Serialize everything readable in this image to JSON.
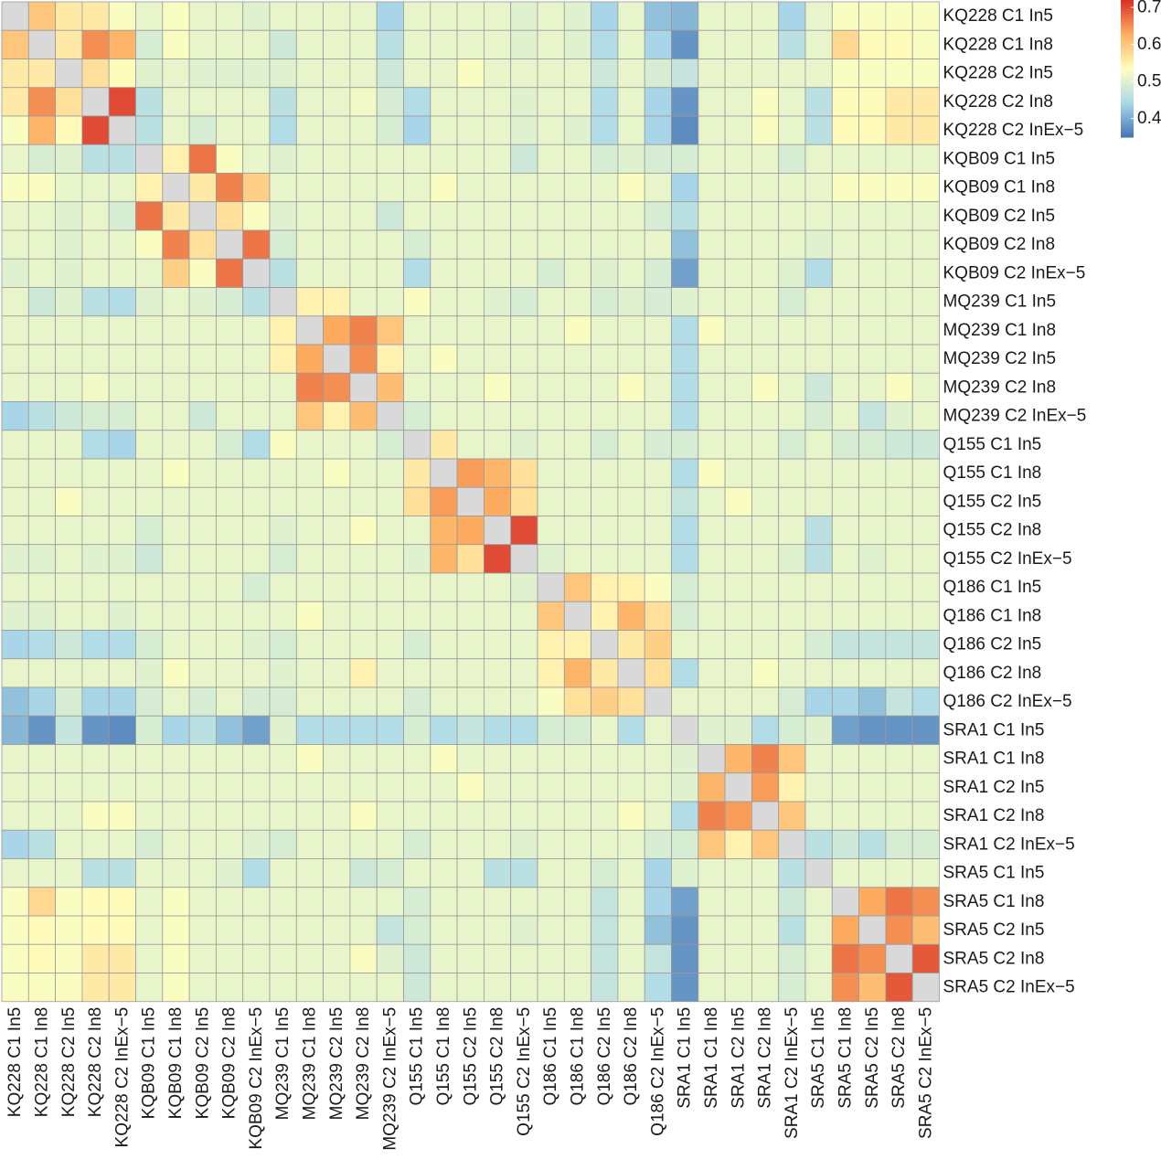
{
  "chart_data": {
    "type": "heatmap",
    "title": "",
    "xlabel": "",
    "ylabel": "",
    "labels": [
      "KQ228 C1 In5",
      "KQ228 C1 In8",
      "KQ228 C2 In5",
      "KQ228 C2 In8",
      "KQ228 C2 InEx−5",
      "KQB09 C1 In5",
      "KQB09 C1 In8",
      "KQB09 C2 In5",
      "KQB09 C2 In8",
      "KQB09 C2 InEx−5",
      "MQ239 C1 In5",
      "MQ239 C1 In8",
      "MQ239 C2 In5",
      "MQ239 C2 In8",
      "MQ239 C2 InEx−5",
      "Q155 C1 In5",
      "Q155 C1 In8",
      "Q155 C2 In5",
      "Q155 C2 In8",
      "Q155 C2 InEx−5",
      "Q186 C1 In5",
      "Q186 C1 In8",
      "Q186 C2 In5",
      "Q186 C2 In8",
      "Q186 C2 InEx−5",
      "SRA1 C1 In5",
      "SRA1 C1 In8",
      "SRA1 C2 In5",
      "SRA1 C2 In8",
      "SRA1 C2 InEx−5",
      "SRA5 C1 In5",
      "SRA5 C1 In8",
      "SRA5 C2 In5",
      "SRA5 C2 In8",
      "SRA5 C2 InEx−5"
    ],
    "diagonal": "not shown (grey)",
    "color_scale": {
      "range": [
        0.35,
        0.72
      ],
      "ticks": [
        0.4,
        0.5,
        0.6,
        0.7
      ],
      "tick_labels": [
        "0.4",
        "0.5",
        "0.6",
        "0.7"
      ],
      "colors": [
        "#4575b4",
        "#abd9e9",
        "#ffffbf",
        "#fdae61",
        "#d73027"
      ],
      "diagonal_color": "#d9d9d9",
      "grid_color": "#9a9a9a"
    },
    "values": [
      [
        null,
        0.6,
        0.56,
        0.56,
        0.53,
        0.51,
        0.53,
        0.51,
        0.51,
        0.5,
        0.51,
        0.51,
        0.51,
        0.51,
        0.44,
        0.51,
        0.51,
        0.51,
        0.51,
        0.5,
        0.51,
        0.5,
        0.44,
        0.51,
        0.42,
        0.41,
        0.51,
        0.51,
        0.51,
        0.44,
        0.51,
        0.53,
        0.53,
        0.53,
        0.53
      ],
      [
        0.6,
        null,
        0.56,
        0.65,
        0.62,
        0.49,
        0.53,
        0.51,
        0.51,
        0.51,
        0.48,
        0.51,
        0.51,
        0.51,
        0.46,
        0.51,
        0.51,
        0.51,
        0.51,
        0.5,
        0.51,
        0.5,
        0.45,
        0.51,
        0.44,
        0.38,
        0.51,
        0.51,
        0.51,
        0.46,
        0.51,
        0.58,
        0.54,
        0.54,
        0.53
      ],
      [
        0.56,
        0.56,
        null,
        0.57,
        0.54,
        0.5,
        0.51,
        0.5,
        0.5,
        0.5,
        0.5,
        0.51,
        0.51,
        0.51,
        0.48,
        0.51,
        0.51,
        0.53,
        0.51,
        0.51,
        0.51,
        0.51,
        0.48,
        0.51,
        0.49,
        0.47,
        0.51,
        0.51,
        0.51,
        0.51,
        0.51,
        0.53,
        0.53,
        0.53,
        0.53
      ],
      [
        0.56,
        0.65,
        0.57,
        null,
        0.7,
        0.46,
        0.51,
        0.51,
        0.51,
        0.51,
        0.46,
        0.51,
        0.51,
        0.52,
        0.49,
        0.45,
        0.51,
        0.51,
        0.51,
        0.5,
        0.51,
        0.51,
        0.45,
        0.51,
        0.44,
        0.38,
        0.51,
        0.51,
        0.53,
        0.51,
        0.46,
        0.54,
        0.54,
        0.56,
        0.56
      ],
      [
        0.53,
        0.62,
        0.54,
        0.7,
        null,
        0.46,
        0.51,
        0.49,
        0.51,
        0.51,
        0.45,
        0.51,
        0.51,
        0.51,
        0.49,
        0.44,
        0.51,
        0.51,
        0.51,
        0.5,
        0.51,
        0.5,
        0.45,
        0.51,
        0.44,
        0.37,
        0.51,
        0.51,
        0.53,
        0.51,
        0.46,
        0.54,
        0.54,
        0.56,
        0.56
      ],
      [
        0.51,
        0.49,
        0.5,
        0.46,
        0.46,
        null,
        0.55,
        0.67,
        0.53,
        0.51,
        0.5,
        0.51,
        0.51,
        0.51,
        0.51,
        0.51,
        0.51,
        0.51,
        0.51,
        0.48,
        0.51,
        0.51,
        0.49,
        0.5,
        0.49,
        0.49,
        0.51,
        0.51,
        0.51,
        0.49,
        0.51,
        0.51,
        0.51,
        0.51,
        0.51
      ],
      [
        0.53,
        0.53,
        0.51,
        0.51,
        0.51,
        0.55,
        null,
        0.56,
        0.66,
        0.59,
        0.51,
        0.51,
        0.51,
        0.51,
        0.51,
        0.51,
        0.53,
        0.51,
        0.51,
        0.51,
        0.51,
        0.51,
        0.51,
        0.53,
        0.51,
        0.44,
        0.51,
        0.51,
        0.51,
        0.51,
        0.51,
        0.53,
        0.53,
        0.53,
        0.53
      ],
      [
        0.51,
        0.51,
        0.5,
        0.51,
        0.49,
        0.67,
        0.56,
        null,
        0.57,
        0.53,
        0.5,
        0.51,
        0.51,
        0.51,
        0.48,
        0.51,
        0.51,
        0.51,
        0.51,
        0.51,
        0.51,
        0.51,
        0.51,
        0.51,
        0.49,
        0.46,
        0.51,
        0.51,
        0.51,
        0.51,
        0.51,
        0.51,
        0.51,
        0.51,
        0.51
      ],
      [
        0.51,
        0.51,
        0.5,
        0.51,
        0.51,
        0.53,
        0.66,
        0.57,
        null,
        0.67,
        0.49,
        0.51,
        0.51,
        0.51,
        0.51,
        0.49,
        0.51,
        0.51,
        0.51,
        0.51,
        0.51,
        0.51,
        0.51,
        0.51,
        0.51,
        0.42,
        0.51,
        0.51,
        0.51,
        0.51,
        0.5,
        0.51,
        0.51,
        0.51,
        0.51
      ],
      [
        0.5,
        0.51,
        0.5,
        0.51,
        0.51,
        0.51,
        0.59,
        0.53,
        0.67,
        null,
        0.46,
        0.51,
        0.51,
        0.51,
        0.51,
        0.45,
        0.51,
        0.51,
        0.51,
        0.51,
        0.49,
        0.51,
        0.5,
        0.51,
        0.49,
        0.39,
        0.51,
        0.51,
        0.51,
        0.5,
        0.45,
        0.51,
        0.51,
        0.51,
        0.51
      ],
      [
        0.51,
        0.48,
        0.5,
        0.46,
        0.45,
        0.5,
        0.51,
        0.5,
        0.49,
        0.46,
        null,
        0.55,
        0.55,
        0.51,
        0.51,
        0.53,
        0.51,
        0.51,
        0.5,
        0.49,
        0.51,
        0.51,
        0.49,
        0.5,
        0.49,
        0.5,
        0.51,
        0.51,
        0.51,
        0.49,
        0.51,
        0.51,
        0.51,
        0.51,
        0.51
      ],
      [
        0.51,
        0.51,
        0.51,
        0.51,
        0.51,
        0.51,
        0.51,
        0.51,
        0.51,
        0.51,
        0.55,
        null,
        0.63,
        0.66,
        0.6,
        0.51,
        0.51,
        0.51,
        0.51,
        0.51,
        0.51,
        0.53,
        0.51,
        0.51,
        0.51,
        0.45,
        0.53,
        0.51,
        0.51,
        0.51,
        0.51,
        0.51,
        0.51,
        0.51,
        0.51
      ],
      [
        0.51,
        0.51,
        0.51,
        0.51,
        0.51,
        0.51,
        0.51,
        0.51,
        0.51,
        0.51,
        0.55,
        0.63,
        null,
        0.65,
        0.55,
        0.51,
        0.53,
        0.51,
        0.51,
        0.51,
        0.51,
        0.51,
        0.51,
        0.51,
        0.51,
        0.45,
        0.51,
        0.51,
        0.51,
        0.51,
        0.51,
        0.51,
        0.51,
        0.51,
        0.51
      ],
      [
        0.51,
        0.51,
        0.51,
        0.52,
        0.51,
        0.51,
        0.51,
        0.51,
        0.51,
        0.51,
        0.51,
        0.66,
        0.65,
        null,
        0.61,
        0.51,
        0.51,
        0.51,
        0.53,
        0.51,
        0.51,
        0.51,
        0.51,
        0.53,
        0.51,
        0.45,
        0.51,
        0.51,
        0.53,
        0.51,
        0.48,
        0.51,
        0.51,
        0.53,
        0.51
      ],
      [
        0.44,
        0.46,
        0.48,
        0.49,
        0.49,
        0.51,
        0.51,
        0.48,
        0.51,
        0.51,
        0.51,
        0.6,
        0.55,
        0.61,
        null,
        0.49,
        0.51,
        0.51,
        0.51,
        0.51,
        0.51,
        0.51,
        0.51,
        0.51,
        0.51,
        0.45,
        0.51,
        0.51,
        0.51,
        0.51,
        0.49,
        0.51,
        0.47,
        0.5,
        0.51
      ],
      [
        0.51,
        0.51,
        0.51,
        0.45,
        0.44,
        0.51,
        0.51,
        0.51,
        0.49,
        0.45,
        0.53,
        0.51,
        0.51,
        0.51,
        0.49,
        null,
        0.56,
        0.51,
        0.51,
        0.5,
        0.51,
        0.51,
        0.49,
        0.51,
        0.49,
        0.49,
        0.51,
        0.51,
        0.51,
        0.49,
        0.51,
        0.49,
        0.49,
        0.48,
        0.48
      ],
      [
        0.51,
        0.51,
        0.51,
        0.51,
        0.51,
        0.51,
        0.53,
        0.51,
        0.51,
        0.51,
        0.51,
        0.51,
        0.53,
        0.51,
        0.51,
        0.56,
        null,
        0.64,
        0.62,
        0.57,
        0.51,
        0.51,
        0.51,
        0.51,
        0.51,
        0.45,
        0.53,
        0.51,
        0.51,
        0.51,
        0.51,
        0.51,
        0.51,
        0.51,
        0.51
      ],
      [
        0.51,
        0.51,
        0.53,
        0.51,
        0.51,
        0.51,
        0.51,
        0.51,
        0.51,
        0.51,
        0.51,
        0.51,
        0.51,
        0.51,
        0.51,
        0.57,
        0.64,
        null,
        0.63,
        0.57,
        0.51,
        0.51,
        0.51,
        0.51,
        0.51,
        0.47,
        0.51,
        0.53,
        0.51,
        0.51,
        0.51,
        0.51,
        0.51,
        0.51,
        0.51
      ],
      [
        0.51,
        0.51,
        0.51,
        0.51,
        0.51,
        0.49,
        0.51,
        0.51,
        0.51,
        0.51,
        0.5,
        0.51,
        0.51,
        0.53,
        0.51,
        0.51,
        0.62,
        0.63,
        null,
        0.7,
        0.51,
        0.51,
        0.51,
        0.51,
        0.51,
        0.45,
        0.51,
        0.51,
        0.51,
        0.51,
        0.46,
        0.51,
        0.51,
        0.51,
        0.51
      ],
      [
        0.5,
        0.5,
        0.51,
        0.5,
        0.5,
        0.48,
        0.51,
        0.51,
        0.51,
        0.51,
        0.49,
        0.51,
        0.51,
        0.51,
        0.51,
        0.5,
        0.62,
        0.57,
        0.7,
        null,
        0.5,
        0.51,
        0.51,
        0.51,
        0.51,
        0.45,
        0.51,
        0.51,
        0.51,
        0.5,
        0.46,
        0.51,
        0.5,
        0.51,
        0.51
      ],
      [
        0.51,
        0.51,
        0.51,
        0.51,
        0.51,
        0.51,
        0.51,
        0.51,
        0.51,
        0.49,
        0.51,
        0.51,
        0.51,
        0.51,
        0.51,
        0.51,
        0.51,
        0.51,
        0.51,
        0.5,
        null,
        0.6,
        0.55,
        0.55,
        0.53,
        0.49,
        0.51,
        0.51,
        0.51,
        0.51,
        0.51,
        0.51,
        0.51,
        0.51,
        0.51
      ],
      [
        0.5,
        0.5,
        0.51,
        0.51,
        0.5,
        0.51,
        0.51,
        0.51,
        0.51,
        0.51,
        0.51,
        0.53,
        0.51,
        0.51,
        0.51,
        0.51,
        0.51,
        0.51,
        0.51,
        0.51,
        0.6,
        null,
        0.55,
        0.62,
        0.57,
        0.49,
        0.51,
        0.51,
        0.51,
        0.51,
        0.51,
        0.51,
        0.51,
        0.51,
        0.51
      ],
      [
        0.44,
        0.45,
        0.48,
        0.45,
        0.45,
        0.49,
        0.51,
        0.51,
        0.51,
        0.5,
        0.49,
        0.51,
        0.51,
        0.51,
        0.51,
        0.49,
        0.51,
        0.51,
        0.51,
        0.51,
        0.55,
        0.55,
        null,
        0.56,
        0.59,
        0.51,
        0.51,
        0.51,
        0.51,
        0.51,
        0.49,
        0.47,
        0.47,
        0.47,
        0.47
      ],
      [
        0.51,
        0.51,
        0.51,
        0.51,
        0.51,
        0.5,
        0.53,
        0.51,
        0.51,
        0.51,
        0.5,
        0.51,
        0.51,
        0.55,
        0.51,
        0.51,
        0.51,
        0.51,
        0.51,
        0.51,
        0.55,
        0.62,
        0.56,
        null,
        0.57,
        0.45,
        0.51,
        0.51,
        0.53,
        0.51,
        0.51,
        0.51,
        0.51,
        0.51,
        0.51
      ],
      [
        0.42,
        0.44,
        0.49,
        0.44,
        0.44,
        0.49,
        0.51,
        0.49,
        0.51,
        0.49,
        0.49,
        0.51,
        0.51,
        0.51,
        0.51,
        0.49,
        0.51,
        0.51,
        0.51,
        0.51,
        0.53,
        0.57,
        0.59,
        0.57,
        null,
        0.51,
        0.51,
        0.51,
        0.51,
        0.49,
        0.44,
        0.44,
        0.42,
        0.47,
        0.45
      ],
      [
        0.41,
        0.38,
        0.47,
        0.38,
        0.37,
        0.49,
        0.44,
        0.46,
        0.42,
        0.39,
        0.5,
        0.45,
        0.45,
        0.45,
        0.45,
        0.49,
        0.45,
        0.47,
        0.45,
        0.45,
        0.49,
        0.49,
        0.51,
        0.45,
        0.51,
        null,
        0.5,
        0.5,
        0.45,
        0.49,
        0.5,
        0.39,
        0.38,
        0.38,
        0.38
      ],
      [
        0.51,
        0.51,
        0.51,
        0.51,
        0.51,
        0.51,
        0.51,
        0.51,
        0.51,
        0.51,
        0.51,
        0.53,
        0.51,
        0.51,
        0.51,
        0.51,
        0.53,
        0.51,
        0.51,
        0.51,
        0.51,
        0.51,
        0.51,
        0.51,
        0.51,
        0.5,
        null,
        0.62,
        0.66,
        0.6,
        0.51,
        0.51,
        0.51,
        0.51,
        0.51
      ],
      [
        0.51,
        0.51,
        0.51,
        0.51,
        0.51,
        0.51,
        0.51,
        0.51,
        0.51,
        0.51,
        0.51,
        0.51,
        0.51,
        0.51,
        0.51,
        0.51,
        0.51,
        0.53,
        0.51,
        0.51,
        0.51,
        0.51,
        0.51,
        0.51,
        0.51,
        0.5,
        0.62,
        null,
        0.64,
        0.55,
        0.51,
        0.51,
        0.51,
        0.51,
        0.51
      ],
      [
        0.51,
        0.51,
        0.51,
        0.53,
        0.53,
        0.51,
        0.51,
        0.51,
        0.51,
        0.51,
        0.51,
        0.51,
        0.51,
        0.53,
        0.51,
        0.51,
        0.51,
        0.51,
        0.51,
        0.51,
        0.51,
        0.51,
        0.51,
        0.53,
        0.51,
        0.45,
        0.66,
        0.64,
        null,
        0.6,
        0.51,
        0.51,
        0.51,
        0.51,
        0.51
      ],
      [
        0.44,
        0.46,
        0.51,
        0.51,
        0.51,
        0.49,
        0.51,
        0.51,
        0.51,
        0.5,
        0.49,
        0.51,
        0.51,
        0.51,
        0.51,
        0.49,
        0.51,
        0.51,
        0.51,
        0.5,
        0.51,
        0.51,
        0.51,
        0.51,
        0.49,
        0.49,
        0.6,
        0.55,
        0.6,
        null,
        0.46,
        0.48,
        0.46,
        0.49,
        0.49
      ],
      [
        0.51,
        0.51,
        0.51,
        0.46,
        0.46,
        0.51,
        0.51,
        0.51,
        0.5,
        0.45,
        0.51,
        0.51,
        0.51,
        0.48,
        0.49,
        0.51,
        0.51,
        0.51,
        0.46,
        0.46,
        0.51,
        0.51,
        0.49,
        0.51,
        0.44,
        0.5,
        0.51,
        0.51,
        0.51,
        0.46,
        null,
        0.51,
        0.51,
        0.51,
        0.51
      ],
      [
        0.53,
        0.58,
        0.53,
        0.54,
        0.54,
        0.51,
        0.53,
        0.51,
        0.51,
        0.51,
        0.51,
        0.51,
        0.51,
        0.51,
        0.51,
        0.49,
        0.51,
        0.51,
        0.51,
        0.51,
        0.51,
        0.51,
        0.47,
        0.51,
        0.44,
        0.39,
        0.51,
        0.51,
        0.51,
        0.48,
        0.51,
        null,
        0.63,
        0.67,
        0.65
      ],
      [
        0.53,
        0.54,
        0.53,
        0.54,
        0.54,
        0.51,
        0.53,
        0.51,
        0.51,
        0.51,
        0.51,
        0.51,
        0.51,
        0.51,
        0.47,
        0.49,
        0.51,
        0.51,
        0.51,
        0.5,
        0.51,
        0.51,
        0.47,
        0.51,
        0.42,
        0.38,
        0.51,
        0.51,
        0.51,
        0.46,
        0.51,
        0.63,
        null,
        0.65,
        0.61
      ],
      [
        0.53,
        0.54,
        0.53,
        0.56,
        0.56,
        0.51,
        0.53,
        0.51,
        0.51,
        0.51,
        0.51,
        0.51,
        0.51,
        0.53,
        0.5,
        0.48,
        0.51,
        0.51,
        0.51,
        0.51,
        0.51,
        0.51,
        0.47,
        0.51,
        0.47,
        0.38,
        0.51,
        0.51,
        0.51,
        0.49,
        0.51,
        0.67,
        0.65,
        null,
        0.69
      ],
      [
        0.53,
        0.53,
        0.53,
        0.56,
        0.56,
        0.51,
        0.53,
        0.51,
        0.51,
        0.51,
        0.51,
        0.51,
        0.51,
        0.51,
        0.51,
        0.48,
        0.51,
        0.51,
        0.51,
        0.51,
        0.51,
        0.51,
        0.47,
        0.51,
        0.45,
        0.38,
        0.51,
        0.51,
        0.51,
        0.49,
        0.51,
        0.65,
        0.61,
        0.69,
        null
      ]
    ]
  }
}
